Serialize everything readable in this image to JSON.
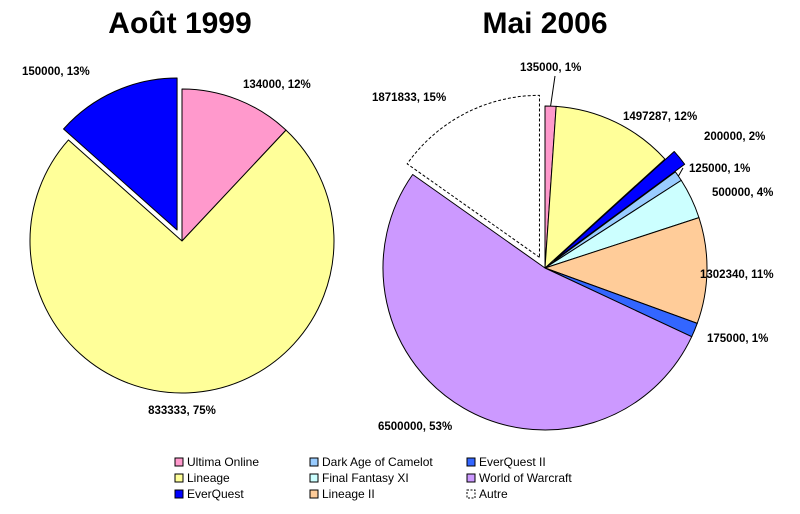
{
  "chart_data": [
    {
      "type": "pie",
      "title": "Août 1999",
      "slices": [
        {
          "name": "Ultima Online",
          "value": 134000,
          "percent": 12,
          "label": "134000, 12%",
          "color": "#ff99cc",
          "exploded": false
        },
        {
          "name": "Lineage",
          "value": 833333,
          "percent": 75,
          "label": "833333, 75%",
          "color": "#ffff99",
          "exploded": false
        },
        {
          "name": "EverQuest",
          "value": 150000,
          "percent": 13,
          "label": "150000, 13%",
          "color": "#0000ff",
          "exploded": true
        }
      ]
    },
    {
      "type": "pie",
      "title": "Mai 2006",
      "slices": [
        {
          "name": "Ultima Online",
          "value": 135000,
          "percent": 1,
          "label": "135000, 1%",
          "color": "#ff99cc",
          "exploded": false
        },
        {
          "name": "Lineage",
          "value": 1497287,
          "percent": 12,
          "label": "1497287, 12%",
          "color": "#ffff99",
          "exploded": false
        },
        {
          "name": "EverQuest",
          "value": 200000,
          "percent": 2,
          "label": "200000, 2%",
          "color": "#0000ff",
          "exploded": true
        },
        {
          "name": "Dark Age of Camelot",
          "value": 125000,
          "percent": 1,
          "label": "125000, 1%",
          "color": "#99ccff",
          "exploded": false
        },
        {
          "name": "Final Fantasy XI",
          "value": 500000,
          "percent": 4,
          "label": "500000, 4%",
          "color": "#ccffff",
          "exploded": false
        },
        {
          "name": "Lineage II",
          "value": 1302340,
          "percent": 11,
          "label": "1302340, 11%",
          "color": "#ffcc99",
          "exploded": false
        },
        {
          "name": "EverQuest II",
          "value": 175000,
          "percent": 1,
          "label": "175000, 1%",
          "color": "#3366ff",
          "exploded": false
        },
        {
          "name": "World of Warcraft",
          "value": 6500000,
          "percent": 53,
          "label": "6500000, 53%",
          "color": "#cc99ff",
          "exploded": false
        },
        {
          "name": "Autre",
          "value": 1871833,
          "percent": 15,
          "label": "1871833, 15%",
          "color": "#ffffff",
          "exploded": true,
          "dashed": true
        }
      ]
    }
  ],
  "legend": {
    "placement": "bottom",
    "items": [
      {
        "name": "Ultima Online",
        "color": "#ff99cc"
      },
      {
        "name": "Dark Age of Camelot",
        "color": "#99ccff"
      },
      {
        "name": "EverQuest II",
        "color": "#3366ff"
      },
      {
        "name": "Lineage",
        "color": "#ffff99"
      },
      {
        "name": "Final Fantasy XI",
        "color": "#ccffff"
      },
      {
        "name": "World of Warcraft",
        "color": "#cc99ff"
      },
      {
        "name": "EverQuest",
        "color": "#0000ff"
      },
      {
        "name": "Lineage II",
        "color": "#ffcc99"
      },
      {
        "name": "Autre",
        "color": "#ffffff",
        "dashed": true
      }
    ]
  }
}
